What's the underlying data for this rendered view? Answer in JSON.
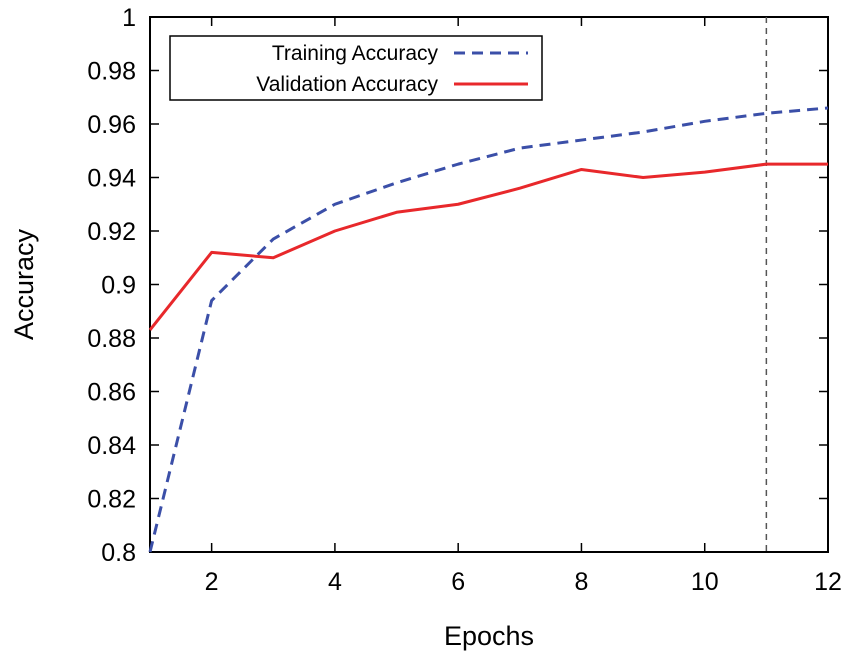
{
  "chart_data": {
    "type": "line",
    "title": "",
    "xlabel": "Epochs",
    "ylabel": "Accuracy",
    "xlim": [
      1,
      12
    ],
    "ylim": [
      0.8,
      1.0
    ],
    "x_ticks": [
      2,
      4,
      6,
      8,
      10,
      12
    ],
    "x_tick_labels": [
      "2",
      "4",
      "6",
      "8",
      "10",
      "12"
    ],
    "y_ticks": [
      0.8,
      0.82,
      0.84,
      0.86,
      0.88,
      0.9,
      0.92,
      0.94,
      0.96,
      0.98,
      1.0
    ],
    "y_tick_labels": [
      "0.8",
      "0.82",
      "0.84",
      "0.86",
      "0.88",
      "0.9",
      "0.92",
      "0.94",
      "0.96",
      "0.98",
      "1"
    ],
    "grid": false,
    "legend_position": "top-left",
    "x": [
      1,
      2,
      3,
      4,
      5,
      6,
      7,
      8,
      9,
      10,
      11,
      12
    ],
    "series": [
      {
        "name": "Training Accuracy",
        "style": "dashed",
        "color": "#3b4fa8",
        "values": [
          0.8,
          0.894,
          0.917,
          0.93,
          0.938,
          0.945,
          0.951,
          0.954,
          0.957,
          0.961,
          0.964,
          0.966
        ]
      },
      {
        "name": "Validation Accuracy",
        "style": "solid",
        "color": "#e8282b",
        "values": [
          0.883,
          0.912,
          0.91,
          0.92,
          0.927,
          0.93,
          0.936,
          0.943,
          0.94,
          0.942,
          0.945,
          0.945
        ]
      }
    ],
    "vertical_marker": {
      "x": 11,
      "style": "dashed",
      "color": "#555555"
    }
  }
}
